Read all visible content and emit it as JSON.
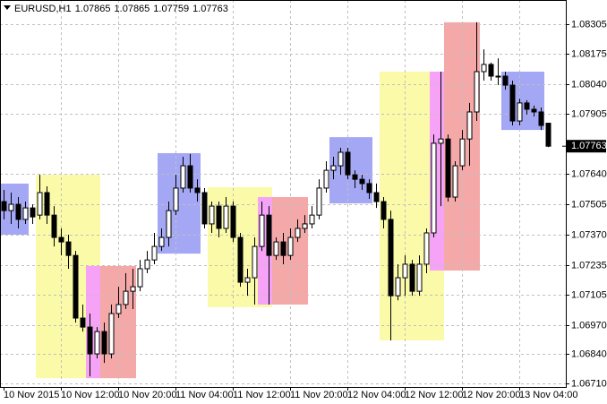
{
  "chart_data": {
    "type": "candlestick",
    "title": "EURUSD,H1",
    "categories": [
      "10 Nov 2015",
      null,
      null,
      null,
      null,
      null,
      null,
      null,
      "10 Nov 12:00",
      null,
      null,
      null,
      null,
      null,
      null,
      null,
      "10 Nov 20:00",
      null,
      null,
      null,
      null,
      null,
      null,
      null,
      "11 Nov 04:00",
      null,
      null,
      null,
      null,
      null,
      null,
      null,
      "11 Nov 12:00",
      null,
      null,
      null,
      null,
      null,
      null,
      null,
      "11 Nov 20:00",
      null,
      null,
      null,
      null,
      null,
      null,
      null,
      "12 Nov 04:00",
      null,
      null,
      null,
      null,
      null,
      null,
      null,
      "12 Nov 12:00",
      null,
      null,
      null,
      null,
      null,
      null,
      null,
      "12 Nov 20:00",
      null,
      null,
      null,
      null,
      null,
      null,
      null,
      "13 Nov 04:00",
      null,
      null,
      null,
      null
    ],
    "open": [
      1.07517,
      1.07477,
      1.07505,
      1.07438,
      1.07489,
      1.07457,
      1.07557,
      1.07457,
      1.07358,
      1.07338,
      1.07278,
      1.07,
      1.0696,
      1.06841,
      1.0694,
      1.06841,
      1.0702,
      1.0706,
      1.07119,
      1.07139,
      1.07219,
      1.07258,
      1.07318,
      1.07358,
      1.07477,
      1.07577,
      1.07676,
      1.07577,
      1.07557,
      1.07418,
      1.07497,
      1.07398,
      1.07497,
      1.07358,
      1.07159,
      1.07179,
      1.07318,
      1.07457,
      1.07278,
      1.07338,
      1.07278,
      1.07358,
      1.07398,
      1.07418,
      1.07457,
      1.07577,
      1.07656,
      1.07676,
      1.07736,
      1.07636,
      1.07616,
      1.07597,
      1.07557,
      1.07517,
      1.07438,
      1.07099,
      1.07179,
      1.07239,
      1.07119,
      1.07239,
      1.07378,
      1.07776,
      1.07795,
      1.07537,
      1.07676,
      1.07795,
      1.07915,
      1.08094,
      1.08126,
      1.08074,
      1.08074,
      1.08034,
      1.07875,
      1.07955,
      1.07927,
      1.07915,
      1.07865
    ],
    "high": [
      1.07569,
      1.07557,
      1.07537,
      1.07517,
      1.07505,
      1.07636,
      1.07585,
      1.07497,
      1.07398,
      1.0737,
      1.07298,
      1.0706,
      1.0702,
      1.0696,
      1.0698,
      1.0706,
      1.07139,
      1.07199,
      1.07219,
      1.07258,
      1.07298,
      1.07378,
      1.07398,
      1.07517,
      1.07636,
      1.07716,
      1.07728,
      1.07616,
      1.07577,
      1.07517,
      1.07517,
      1.07537,
      1.07517,
      1.07378,
      1.07219,
      1.07358,
      1.07517,
      1.07497,
      1.07358,
      1.07378,
      1.07398,
      1.07438,
      1.07457,
      1.07497,
      1.07616,
      1.07696,
      1.07716,
      1.07756,
      1.07756,
      1.07656,
      1.07636,
      1.07616,
      1.07597,
      1.07537,
      1.07477,
      1.07239,
      1.07278,
      1.07258,
      1.07278,
      1.07398,
      1.07815,
      1.08094,
      1.07815,
      1.07696,
      1.07835,
      1.07955,
      1.08313,
      1.08193,
      1.08134,
      1.08153,
      1.08094,
      1.08054,
      1.07974,
      1.07967,
      1.07943,
      1.07935,
      1.07865
    ],
    "low": [
      1.07438,
      1.07418,
      1.07398,
      1.07418,
      1.07418,
      1.07438,
      1.07418,
      1.07318,
      1.07278,
      1.07219,
      1.0698,
      1.0694,
      1.06741,
      1.06821,
      1.06801,
      1.06821,
      1.07,
      1.0704,
      1.0704,
      1.07119,
      1.07199,
      1.07239,
      1.07298,
      1.07318,
      1.07457,
      1.07557,
      1.07557,
      1.07517,
      1.07398,
      1.07378,
      1.07358,
      1.07378,
      1.07338,
      1.07139,
      1.07099,
      1.0706,
      1.07298,
      1.0706,
      1.07258,
      1.07239,
      1.07258,
      1.07338,
      1.07378,
      1.07398,
      1.07438,
      1.07557,
      1.07616,
      1.07636,
      1.07616,
      1.07577,
      1.07569,
      1.07529,
      1.07489,
      1.07398,
      1.06901,
      1.07079,
      1.07099,
      1.07099,
      1.07099,
      1.07199,
      1.07358,
      1.07497,
      1.07517,
      1.07517,
      1.07656,
      1.07676,
      1.07875,
      1.08054,
      1.08054,
      1.08034,
      1.08014,
      1.07855,
      1.07855,
      1.07903,
      1.07895,
      1.07835,
      1.07759
    ],
    "close": [
      1.07477,
      1.07505,
      1.07438,
      1.07489,
      1.07449,
      1.07557,
      1.07457,
      1.07358,
      1.07338,
      1.07278,
      1.07,
      1.0696,
      1.06841,
      1.0694,
      1.06841,
      1.0702,
      1.0706,
      1.07119,
      1.07139,
      1.07219,
      1.07258,
      1.07318,
      1.07358,
      1.07477,
      1.07577,
      1.07676,
      1.07577,
      1.07557,
      1.07418,
      1.07497,
      1.07398,
      1.07497,
      1.07358,
      1.07159,
      1.07179,
      1.07318,
      1.07457,
      1.07278,
      1.07338,
      1.07278,
      1.07358,
      1.07398,
      1.07418,
      1.07457,
      1.07577,
      1.07656,
      1.07676,
      1.07736,
      1.07636,
      1.07616,
      1.07597,
      1.07557,
      1.07517,
      1.07438,
      1.07099,
      1.07179,
      1.07239,
      1.07119,
      1.07239,
      1.07378,
      1.07776,
      1.07795,
      1.07537,
      1.07676,
      1.07795,
      1.07915,
      1.08094,
      1.08126,
      1.08074,
      1.08074,
      1.08034,
      1.07875,
      1.07955,
      1.07927,
      1.07915,
      1.07855,
      1.07763
    ],
    "up_color": "#ffffff",
    "down_color": "#000000",
    "zones": [
      {
        "start": 0,
        "end": 3,
        "top": 1.07597,
        "bottom": 1.0737,
        "color": "#a4a8f4"
      },
      {
        "start": 5,
        "end": 13,
        "top": 1.07636,
        "bottom": 1.06733,
        "color": "#fafaa8"
      },
      {
        "start": 12,
        "end": 13,
        "top": 1.07231,
        "bottom": 1.06733,
        "color": "#f6a2f6"
      },
      {
        "start": 14,
        "end": 18,
        "top": 1.07231,
        "bottom": 1.06733,
        "color": "#f4a8a8"
      },
      {
        "start": 22,
        "end": 27,
        "top": 1.07732,
        "bottom": 1.07286,
        "color": "#a4a8f4"
      },
      {
        "start": 29,
        "end": 37,
        "top": 1.07581,
        "bottom": 1.07048,
        "color": "#fafaa8"
      },
      {
        "start": 36,
        "end": 37,
        "top": 1.07537,
        "bottom": 1.0706,
        "color": "#f6a2f6"
      },
      {
        "start": 38,
        "end": 42,
        "top": 1.07537,
        "bottom": 1.0706,
        "color": "#f4a8a8"
      },
      {
        "start": 46,
        "end": 51,
        "top": 1.07803,
        "bottom": 1.07509,
        "color": "#a4a8f4"
      },
      {
        "start": 53,
        "end": 61,
        "top": 1.08094,
        "bottom": 1.06901,
        "color": "#fafaa8"
      },
      {
        "start": 60,
        "end": 61,
        "top": 1.08094,
        "bottom": 1.07211,
        "color": "#f6a2f6"
      },
      {
        "start": 62,
        "end": 66,
        "top": 1.08313,
        "bottom": 1.07211,
        "color": "#f4a8a8"
      },
      {
        "start": 70,
        "end": 75,
        "top": 1.08094,
        "bottom": 1.07835,
        "color": "#a4a8f4"
      }
    ],
    "ylim": [
      1.06694,
      1.08412
    ],
    "yticks": [
      1.08305,
      1.08175,
      {
        "value": 1.0804,
        "label": "1.08040"
      },
      1.07905,
      {
        "value": 1.0764,
        "label": "1.07640"
      },
      1.07505,
      {
        "value": 1.0737,
        "label": "1.07370"
      },
      1.07235,
      1.07105,
      {
        "value": 1.0697,
        "label": "1.06970"
      },
      {
        "value": 1.0684,
        "label": "1.06840"
      },
      {
        "value": 1.0671,
        "label": "1.06710"
      }
    ],
    "grid": true
  }
}
